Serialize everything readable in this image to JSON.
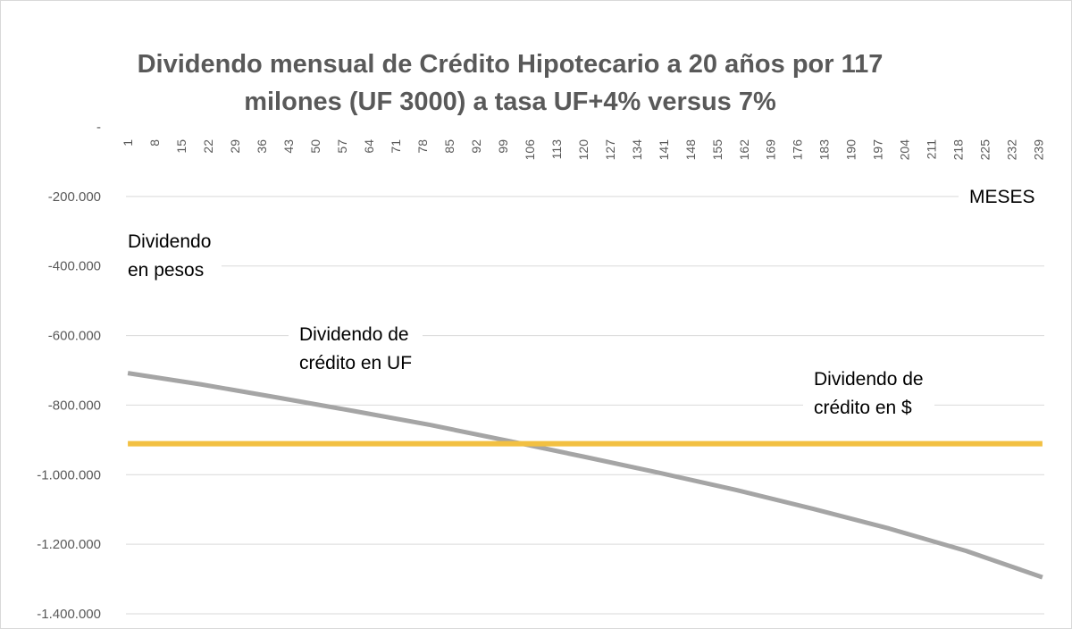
{
  "chart_data": {
    "type": "line",
    "title": "Dividendo mensual de Crédito Hipotecario a 20 años por 117 milones (UF 3000) a tasa UF+4% versus 7%",
    "xlabel": "MESES",
    "ylabel_lines": [
      "Dividendo",
      "en pesos"
    ],
    "x_range": [
      1,
      240
    ],
    "x_tick_labels": [
      "1",
      "8",
      "15",
      "22",
      "29",
      "36",
      "43",
      "50",
      "57",
      "64",
      "71",
      "78",
      "85",
      "92",
      "99",
      "106",
      "113",
      "120",
      "127",
      "134",
      "141",
      "148",
      "155",
      "162",
      "169",
      "176",
      "183",
      "190",
      "197",
      "204",
      "211",
      "218",
      "225",
      "232",
      "239"
    ],
    "ylim": [
      -1400000,
      0
    ],
    "y_tick_values": [
      0,
      -200000,
      -400000,
      -600000,
      -800000,
      -1000000,
      -1200000,
      -1400000
    ],
    "y_tick_labels": [
      "-",
      "-200.000",
      "-400.000",
      "-600.000",
      "-800.000",
      "-1.000.000",
      "-1.200.000",
      "-1.400.000"
    ],
    "grid": true,
    "series": [
      {
        "name": "Dividendo de crédito en UF",
        "color": "#a5a5a5",
        "x": [
          1,
          20,
          40,
          60,
          80,
          100,
          120,
          140,
          160,
          180,
          200,
          220,
          240
        ],
        "values": [
          -708000,
          -740000,
          -778000,
          -817000,
          -857000,
          -902000,
          -948000,
          -995000,
          -1044000,
          -1098000,
          -1155000,
          -1219000,
          -1295000
        ]
      },
      {
        "name": "Dividendo de crédito en $",
        "color": "#f2c042",
        "x": [
          1,
          240
        ],
        "values": [
          -911000,
          -911000
        ]
      }
    ],
    "annotations": [
      {
        "lines": [
          "Dividendo de",
          "crédito en UF"
        ]
      },
      {
        "lines": [
          "Dividendo de",
          "crédito en $"
        ]
      }
    ]
  }
}
